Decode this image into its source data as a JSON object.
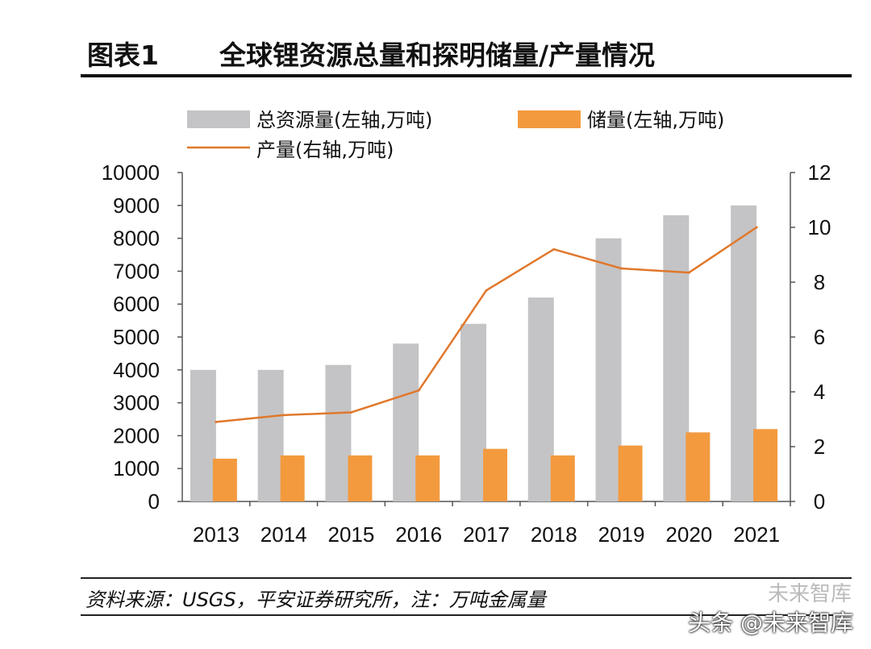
{
  "figure": {
    "label": "图表1",
    "title": "全球锂资源总量和探明储量/产量情况"
  },
  "legend": {
    "total_resources": "总资源量(左轴,万吨)",
    "reserves": "储量(左轴,万吨)",
    "production": "产量(右轴,万吨)"
  },
  "footer": {
    "source": "资料来源：USGS，平安证券研究所，注：万吨金属量"
  },
  "watermark": {
    "text": "头条 @未来智库",
    "logo_text": "未来智库"
  },
  "colors": {
    "total_resources": "#c4c4c6",
    "reserves": "#f39a3f",
    "production": "#e0782c"
  },
  "chart_data": {
    "type": "bar",
    "categories": [
      "2013",
      "2014",
      "2015",
      "2016",
      "2017",
      "2018",
      "2019",
      "2020",
      "2021"
    ],
    "series": [
      {
        "name": "总资源量(左轴,万吨)",
        "axis": "left",
        "kind": "bar",
        "values": [
          4000,
          4000,
          4150,
          4800,
          5400,
          6200,
          8000,
          8700,
          9000
        ]
      },
      {
        "name": "储量(左轴,万吨)",
        "axis": "left",
        "kind": "bar",
        "values": [
          1300,
          1400,
          1400,
          1400,
          1600,
          1400,
          1700,
          2100,
          2200
        ]
      },
      {
        "name": "产量(右轴,万吨)",
        "axis": "right",
        "kind": "line",
        "values": [
          2.9,
          3.15,
          3.25,
          4.05,
          7.7,
          9.2,
          8.5,
          8.35,
          10.0
        ]
      }
    ],
    "left_axis": {
      "min": 0,
      "max": 10000,
      "step": 1000,
      "ticks": [
        "0",
        "1000",
        "2000",
        "3000",
        "4000",
        "5000",
        "6000",
        "7000",
        "8000",
        "9000",
        "10000"
      ]
    },
    "right_axis": {
      "min": 0,
      "max": 12,
      "step": 2,
      "ticks": [
        "0",
        "2",
        "4",
        "6",
        "8",
        "10",
        "12"
      ]
    },
    "grid": false,
    "legend_position": "top"
  }
}
